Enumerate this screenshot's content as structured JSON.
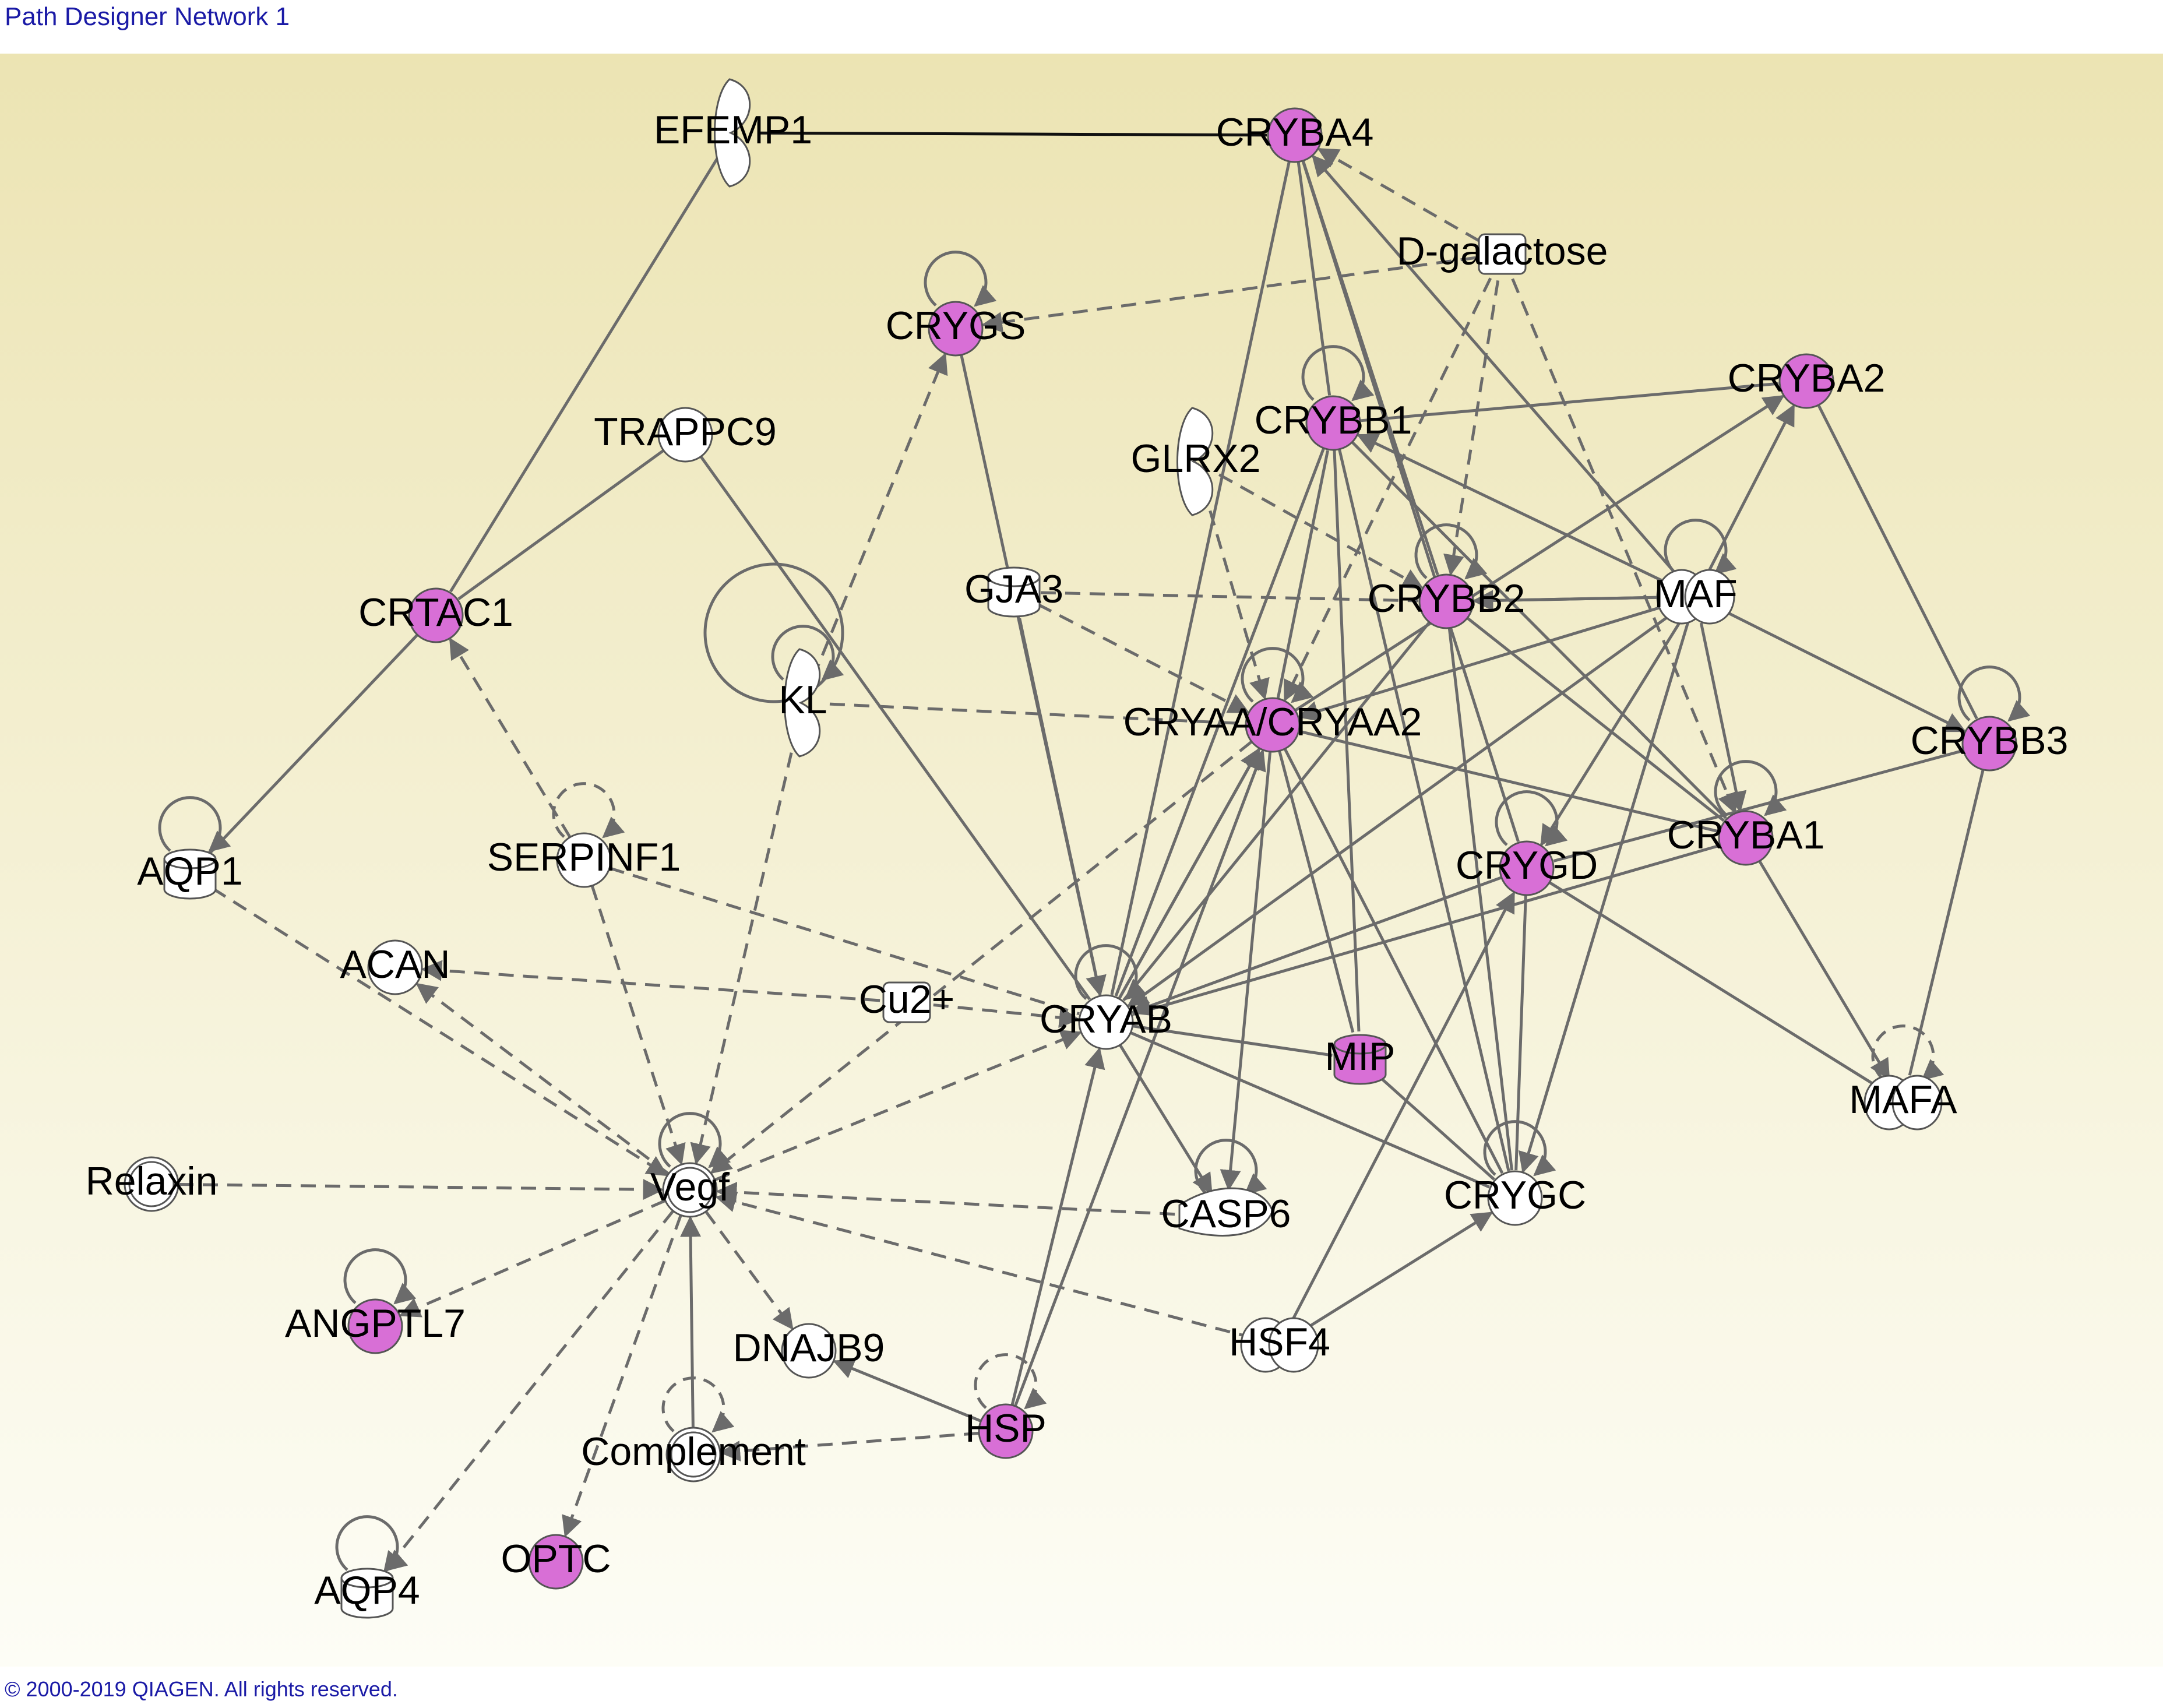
{
  "title": "Path Designer Network 1",
  "footer": "© 2000-2019 QIAGEN. All rights reserved.",
  "colors": {
    "highlight": "#d86fd6",
    "node_fill": "#ffffff",
    "edge": "#6b6b6b",
    "background_top": "#ece4b3",
    "background_bottom": "#fdfdf6"
  },
  "nodes": [
    {
      "id": "EFEMP1",
      "label": "EFEMP1",
      "shape": "crescent",
      "highlight": false
    },
    {
      "id": "CRYBA4",
      "label": "CRYBA4",
      "shape": "circle",
      "highlight": true
    },
    {
      "id": "D-galactose",
      "label": "D-galactose",
      "shape": "small-rect",
      "highlight": false
    },
    {
      "id": "CRYGS",
      "label": "CRYGS",
      "shape": "circle",
      "highlight": true
    },
    {
      "id": "CRYBA2",
      "label": "CRYBA2",
      "shape": "circle",
      "highlight": true
    },
    {
      "id": "CRYBB1",
      "label": "CRYBB1",
      "shape": "circle",
      "highlight": true
    },
    {
      "id": "TRAPPC9",
      "label": "TRAPPC9",
      "shape": "circle",
      "highlight": false
    },
    {
      "id": "GLRX2",
      "label": "GLRX2",
      "shape": "crescent",
      "highlight": false
    },
    {
      "id": "GJA3",
      "label": "GJA3",
      "shape": "cylinder",
      "highlight": false
    },
    {
      "id": "CRYBB2",
      "label": "CRYBB2",
      "shape": "circle",
      "highlight": true
    },
    {
      "id": "MAF",
      "label": "MAF",
      "shape": "ellipse",
      "highlight": false
    },
    {
      "id": "CRTAC1",
      "label": "CRTAC1",
      "shape": "circle",
      "highlight": true
    },
    {
      "id": "KL",
      "label": "KL",
      "shape": "crescent",
      "highlight": false
    },
    {
      "id": "CRYAA",
      "label": "CRYAA/CRYAA2",
      "shape": "circle",
      "highlight": true
    },
    {
      "id": "CRYBB3",
      "label": "CRYBB3",
      "shape": "circle",
      "highlight": true
    },
    {
      "id": "CRYBA1",
      "label": "CRYBA1",
      "shape": "circle",
      "highlight": true
    },
    {
      "id": "AQP1",
      "label": "AQP1",
      "shape": "cylinder",
      "highlight": false
    },
    {
      "id": "SERPINF1",
      "label": "SERPINF1",
      "shape": "circle",
      "highlight": false
    },
    {
      "id": "CRYGD",
      "label": "CRYGD",
      "shape": "circle",
      "highlight": true
    },
    {
      "id": "ACAN",
      "label": "ACAN",
      "shape": "circle",
      "highlight": false
    },
    {
      "id": "Cu2+",
      "label": "Cu2+",
      "shape": "small-rect",
      "highlight": false
    },
    {
      "id": "CRYAB",
      "label": "CRYAB",
      "shape": "circle",
      "highlight": false
    },
    {
      "id": "MIP",
      "label": "MIP",
      "shape": "cylinder",
      "highlight": true
    },
    {
      "id": "MAFA",
      "label": "MAFA",
      "shape": "ellipse",
      "highlight": false
    },
    {
      "id": "Relaxin",
      "label": "Relaxin",
      "shape": "double-circle",
      "highlight": false
    },
    {
      "id": "Vegf",
      "label": "Vegf",
      "shape": "double-circle",
      "highlight": false
    },
    {
      "id": "CASP6",
      "label": "CASP6",
      "shape": "scissors",
      "highlight": false
    },
    {
      "id": "CRYGC",
      "label": "CRYGC",
      "shape": "circle",
      "highlight": false
    },
    {
      "id": "ANGPTL7",
      "label": "ANGPTL7",
      "shape": "circle",
      "highlight": true
    },
    {
      "id": "DNAJB9",
      "label": "DNAJB9",
      "shape": "circle",
      "highlight": false
    },
    {
      "id": "HSF4",
      "label": "HSF4",
      "shape": "ellipse",
      "highlight": false
    },
    {
      "id": "Complement",
      "label": "Complement",
      "shape": "double-circle",
      "highlight": false
    },
    {
      "id": "HSP",
      "label": "HSP",
      "shape": "circle",
      "highlight": true
    },
    {
      "id": "AQP4",
      "label": "AQP4",
      "shape": "cylinder",
      "highlight": false
    },
    {
      "id": "OPTC",
      "label": "OPTC",
      "shape": "circle",
      "highlight": true
    }
  ],
  "edges": [
    {
      "from": "EFEMP1",
      "to": "CRYBA4",
      "style": "solid",
      "arrow": false
    },
    {
      "from": "EFEMP1",
      "to": "CRTAC1",
      "style": "solid",
      "arrow": false
    },
    {
      "from": "D-galactose",
      "to": "CRYBA4",
      "style": "dashed",
      "arrow": true
    },
    {
      "from": "D-galactose",
      "to": "CRYGS",
      "style": "dashed",
      "arrow": true
    },
    {
      "from": "D-galactose",
      "to": "CRYBB2",
      "style": "dashed",
      "arrow": true
    },
    {
      "from": "D-galactose",
      "to": "CRYAA",
      "style": "dashed",
      "arrow": true
    },
    {
      "from": "D-galactose",
      "to": "CRYBA1",
      "style": "dashed",
      "arrow": true
    },
    {
      "from": "CRYBA4",
      "to": "CRYBB1",
      "style": "solid",
      "arrow": false
    },
    {
      "from": "CRYBA4",
      "to": "CRYBB2",
      "style": "solid",
      "arrow": false
    },
    {
      "from": "CRYBA4",
      "to": "CRYGD",
      "style": "solid",
      "arrow": false
    },
    {
      "from": "CRYBA4",
      "to": "CRYAB",
      "style": "solid",
      "arrow": false
    },
    {
      "from": "MAF",
      "to": "CRYBA4",
      "style": "solid",
      "arrow": true
    },
    {
      "from": "CRYGS",
      "to": "CRYAB",
      "style": "solid",
      "arrow": false
    },
    {
      "from": "KL",
      "to": "CRYGS",
      "style": "dashed",
      "arrow": true
    },
    {
      "from": "CRYBB1",
      "to": "CRYBA2",
      "style": "solid",
      "arrow": false
    },
    {
      "from": "CRYBB1",
      "to": "CRYGC",
      "style": "solid",
      "arrow": false
    },
    {
      "from": "CRYBB1",
      "to": "CRYAB",
      "style": "solid",
      "arrow": false
    },
    {
      "from": "CRYBB1",
      "to": "MIP",
      "style": "solid",
      "arrow": false
    },
    {
      "from": "CRYBB1",
      "to": "CRYBA1",
      "style": "solid",
      "arrow": false
    },
    {
      "from": "MAF",
      "to": "CRYBB1",
      "style": "solid",
      "arrow": true
    },
    {
      "from": "CRYAA",
      "to": "CRYBB1",
      "style": "solid",
      "arrow": false
    },
    {
      "from": "MAF",
      "to": "CRYBA2",
      "style": "solid",
      "arrow": true
    },
    {
      "from": "CRYBA2",
      "to": "CRYBB3",
      "style": "solid",
      "arrow": false
    },
    {
      "from": "CRYAA",
      "to": "CRYBA2",
      "style": "solid",
      "arrow": true
    },
    {
      "from": "TRAPPC9",
      "to": "CRTAC1",
      "style": "solid",
      "arrow": false
    },
    {
      "from": "TRAPPC9",
      "to": "CRYAB",
      "style": "solid",
      "arrow": false
    },
    {
      "from": "GLRX2",
      "to": "CRYBB2",
      "style": "dashed",
      "arrow": true
    },
    {
      "from": "GLRX2",
      "to": "CRYAA",
      "style": "dashed",
      "arrow": true
    },
    {
      "from": "GJA3",
      "to": "CRYBB2",
      "style": "dashed",
      "arrow": false
    },
    {
      "from": "GJA3",
      "to": "CRYAA",
      "style": "dashed",
      "arrow": true
    },
    {
      "from": "GJA3",
      "to": "CRYAB",
      "style": "solid",
      "arrow": false
    },
    {
      "from": "GJA3",
      "to": "CRYAB",
      "style": "dashed",
      "arrow": true
    },
    {
      "from": "CRYBB2",
      "to": "MAF",
      "style": "solid",
      "arrow": false
    },
    {
      "from": "CRYBB2",
      "to": "CRYBA1",
      "style": "solid",
      "arrow": false
    },
    {
      "from": "CRYBB2",
      "to": "CRYGC",
      "style": "solid",
      "arrow": false
    },
    {
      "from": "CRYBB2",
      "to": "CRYAB",
      "style": "solid",
      "arrow": false
    },
    {
      "from": "MAF",
      "to": "CRYBB2",
      "style": "solid",
      "arrow": true
    },
    {
      "from": "MAF",
      "to": "CRYAA",
      "style": "solid",
      "arrow": true
    },
    {
      "from": "MAF",
      "to": "CRYBB3",
      "style": "solid",
      "arrow": true
    },
    {
      "from": "MAF",
      "to": "CRYBA1",
      "style": "solid",
      "arrow": true
    },
    {
      "from": "MAF",
      "to": "CRYGD",
      "style": "solid",
      "arrow": true
    },
    {
      "from": "MAF",
      "to": "CRYAB",
      "style": "solid",
      "arrow": true
    },
    {
      "from": "MAF",
      "to": "CRYGC",
      "style": "solid",
      "arrow": true
    },
    {
      "from": "CRTAC1",
      "to": "AQP1",
      "style": "solid",
      "arrow": false
    },
    {
      "from": "SERPINF1",
      "to": "CRTAC1",
      "style": "dashed",
      "arrow": true
    },
    {
      "from": "KL",
      "to": "CRYAA",
      "style": "dashed",
      "arrow": false
    },
    {
      "from": "KL",
      "to": "Vegf",
      "style": "dashed",
      "arrow": true
    },
    {
      "from": "CRYAA",
      "to": "CRYBA1",
      "style": "solid",
      "arrow": false
    },
    {
      "from": "CRYAA",
      "to": "CRYGC",
      "style": "solid",
      "arrow": false
    },
    {
      "from": "CRYAA",
      "to": "MIP",
      "style": "solid",
      "arrow": false
    },
    {
      "from": "CRYAA",
      "to": "CASP6",
      "style": "solid",
      "arrow": true
    },
    {
      "from": "CRYAA",
      "to": "CRYAB",
      "style": "solid",
      "arrow": false
    },
    {
      "from": "CRYAA",
      "to": "Vegf",
      "style": "dashed",
      "arrow": true
    },
    {
      "from": "CRYAB",
      "to": "CRYAA",
      "style": "solid",
      "arrow": true
    },
    {
      "from": "HSP",
      "to": "CRYAA",
      "style": "solid",
      "arrow": true
    },
    {
      "from": "CRYBB3",
      "to": "CRYGD",
      "style": "solid",
      "arrow": false
    },
    {
      "from": "CRYBB3",
      "to": "MAFA",
      "style": "solid",
      "arrow": false
    },
    {
      "from": "CRYBA1",
      "to": "MAFA",
      "style": "solid",
      "arrow": true
    },
    {
      "from": "CRYBA1",
      "to": "CRYAB",
      "style": "solid",
      "arrow": false
    },
    {
      "from": "CRYGD",
      "to": "CRYAB",
      "style": "solid",
      "arrow": true
    },
    {
      "from": "CRYGD",
      "to": "CRYGC",
      "style": "solid",
      "arrow": false
    },
    {
      "from": "CRYGD",
      "to": "MAFA",
      "style": "solid",
      "arrow": false
    },
    {
      "from": "HSF4",
      "to": "CRYGD",
      "style": "solid",
      "arrow": true
    },
    {
      "from": "AQP1",
      "to": "Vegf",
      "style": "dashed",
      "arrow": true
    },
    {
      "from": "SERPINF1",
      "to": "CRYAB",
      "style": "dashed",
      "arrow": false
    },
    {
      "from": "SERPINF1",
      "to": "Vegf",
      "style": "dashed",
      "arrow": true
    },
    {
      "from": "Cu2+",
      "to": "ACAN",
      "style": "dashed",
      "arrow": true
    },
    {
      "from": "Cu2+",
      "to": "CRYAB",
      "style": "dashed",
      "arrow": true
    },
    {
      "from": "Vegf",
      "to": "ACAN",
      "style": "dashed",
      "arrow": true
    },
    {
      "from": "CRYAB",
      "to": "MIP",
      "style": "solid",
      "arrow": false
    },
    {
      "from": "CRYAB",
      "to": "CASP6",
      "style": "solid",
      "arrow": true
    },
    {
      "from": "CRYAB",
      "to": "CRYGC",
      "style": "solid",
      "arrow": false
    },
    {
      "from": "Vegf",
      "to": "CRYAB",
      "style": "dashed",
      "arrow": true
    },
    {
      "from": "HSP",
      "to": "CRYAB",
      "style": "solid",
      "arrow": true
    },
    {
      "from": "MIP",
      "to": "CRYGC",
      "style": "solid",
      "arrow": false
    },
    {
      "from": "Relaxin",
      "to": "Vegf",
      "style": "dashed",
      "arrow": true
    },
    {
      "from": "CASP6",
      "to": "Vegf",
      "style": "dashed",
      "arrow": true
    },
    {
      "from": "HSF4",
      "to": "Vegf",
      "style": "dashed",
      "arrow": true
    },
    {
      "from": "HSF4",
      "to": "CRYGC",
      "style": "solid",
      "arrow": true
    },
    {
      "from": "Vegf",
      "to": "ANGPTL7",
      "style": "dashed",
      "arrow": true
    },
    {
      "from": "Vegf",
      "to": "DNAJB9",
      "style": "dashed",
      "arrow": true
    },
    {
      "from": "Vegf",
      "to": "OPTC",
      "style": "dashed",
      "arrow": true
    },
    {
      "from": "Vegf",
      "to": "AQP4",
      "style": "dashed",
      "arrow": true
    },
    {
      "from": "Complement",
      "to": "Vegf",
      "style": "solid",
      "arrow": true
    },
    {
      "from": "HSP",
      "to": "DNAJB9",
      "style": "solid",
      "arrow": true
    },
    {
      "from": "HSP",
      "to": "Complement",
      "style": "dashed",
      "arrow": true
    }
  ],
  "self_loops": [
    {
      "node": "CRYGS",
      "style": "solid"
    },
    {
      "node": "CRYBB1",
      "style": "solid"
    },
    {
      "node": "CRYBB2",
      "style": "solid"
    },
    {
      "node": "MAF",
      "style": "solid"
    },
    {
      "node": "KL",
      "style": "solid"
    },
    {
      "node": "CRYAA",
      "style": "solid"
    },
    {
      "node": "CRYBB3",
      "style": "solid"
    },
    {
      "node": "CRYBA1",
      "style": "solid"
    },
    {
      "node": "CRYGD",
      "style": "solid"
    },
    {
      "node": "AQP1",
      "style": "solid"
    },
    {
      "node": "SERPINF1",
      "style": "dashed"
    },
    {
      "node": "CRYAB",
      "style": "solid"
    },
    {
      "node": "MAFA",
      "style": "dashed"
    },
    {
      "node": "Vegf",
      "style": "solid"
    },
    {
      "node": "CASP6",
      "style": "solid"
    },
    {
      "node": "CRYGC",
      "style": "solid"
    },
    {
      "node": "ANGPTL7",
      "style": "solid"
    },
    {
      "node": "Complement",
      "style": "dashed"
    },
    {
      "node": "HSP",
      "style": "dashed"
    },
    {
      "node": "AQP4",
      "style": "solid"
    }
  ]
}
